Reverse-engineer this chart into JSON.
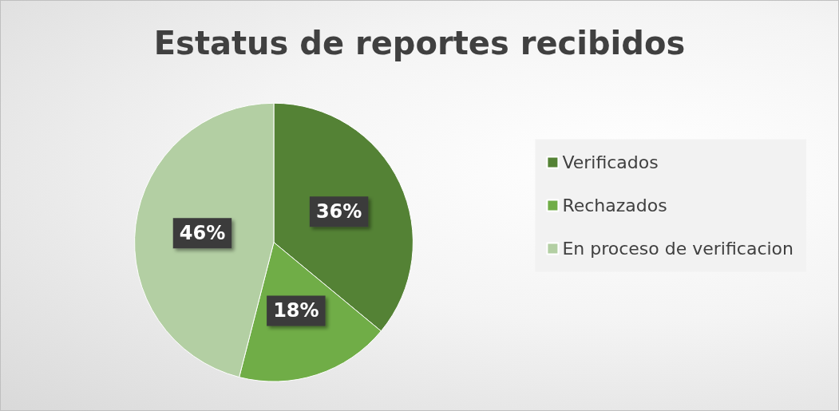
{
  "chart_data": {
    "type": "pie",
    "title": "Estatus de reportes recibidos",
    "categories": [
      "Verificados",
      "Rechazados",
      "En proceso de verificacion"
    ],
    "values": [
      36,
      18,
      46
    ],
    "colors": [
      "#548235",
      "#70ad47",
      "#b3cfa3"
    ],
    "value_labels": [
      "36%",
      "18%",
      "46%"
    ],
    "legend": "right"
  }
}
